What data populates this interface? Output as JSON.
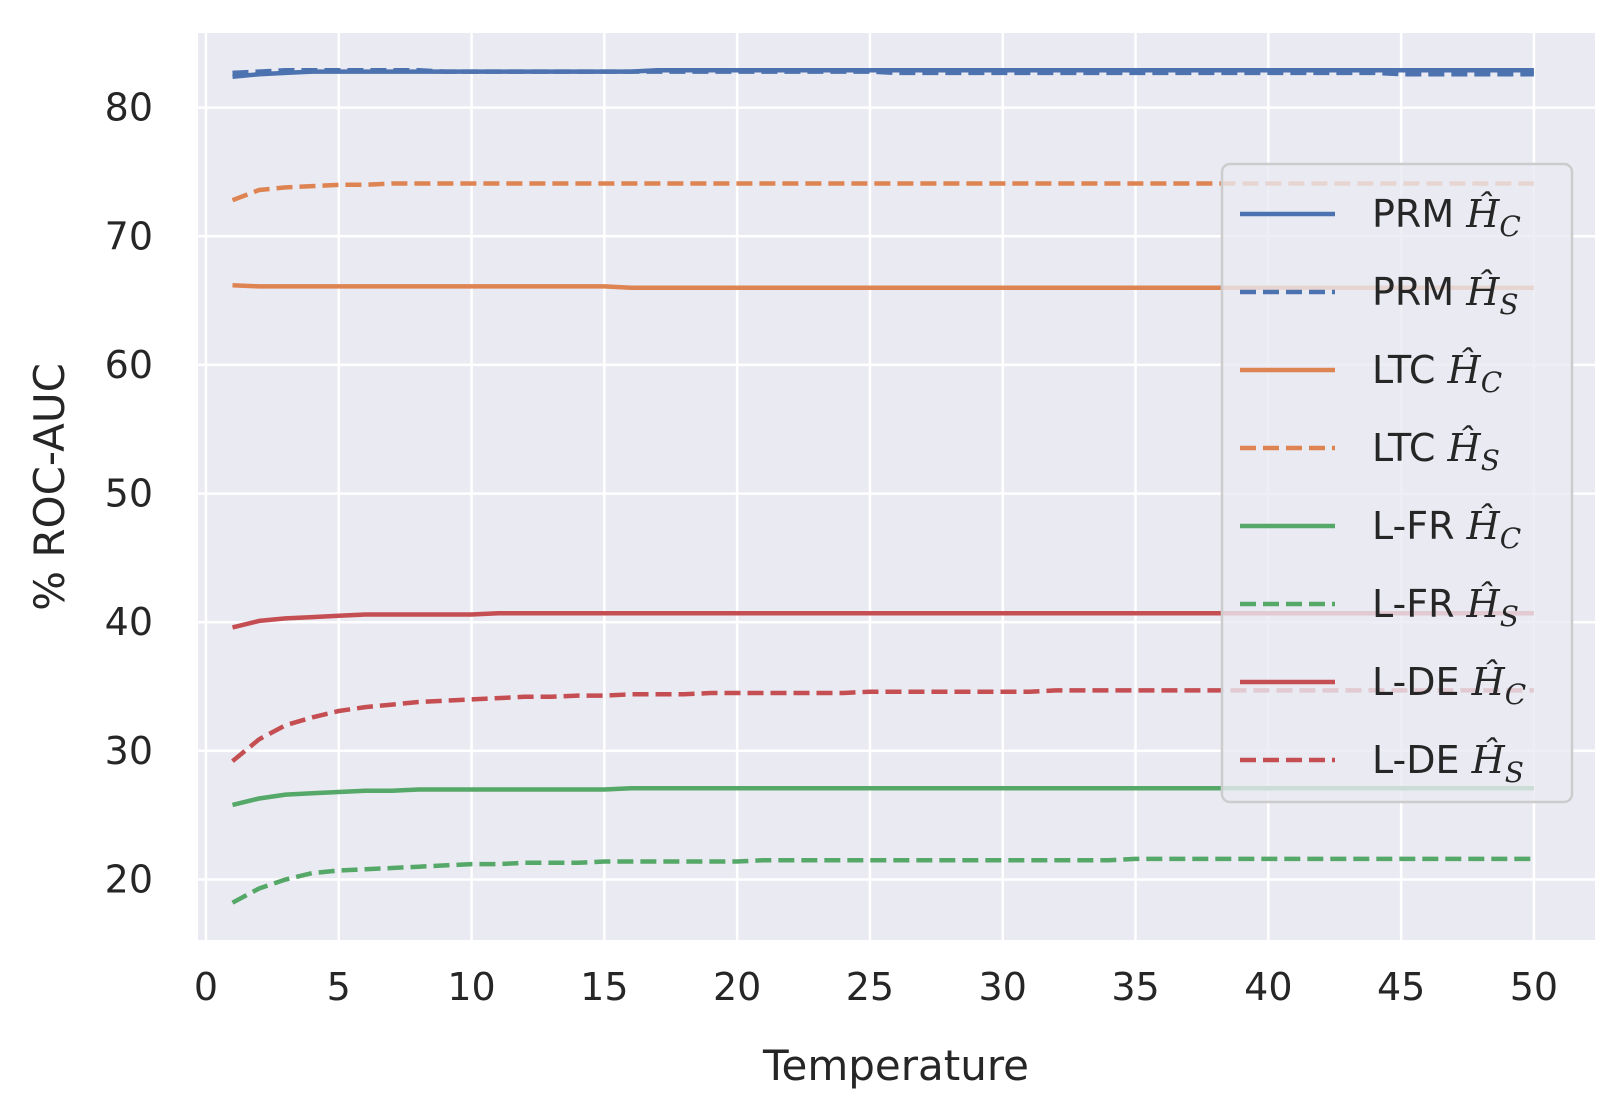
{
  "chart_data": {
    "type": "line",
    "title": "",
    "xlabel": "Temperature",
    "ylabel": "% ROC-AUC",
    "xlim": [
      -0.3,
      52.3
    ],
    "ylim": [
      15.3,
      85.8
    ],
    "xticks": [
      0,
      5,
      10,
      15,
      20,
      25,
      30,
      35,
      40,
      45,
      50
    ],
    "yticks": [
      20,
      30,
      40,
      50,
      60,
      70,
      80
    ],
    "grid": true,
    "legend_position": "right",
    "x": [
      1,
      2,
      3,
      4,
      5,
      6,
      7,
      8,
      9,
      10,
      11,
      12,
      13,
      14,
      15,
      16,
      17,
      18,
      19,
      20,
      21,
      22,
      23,
      24,
      25,
      26,
      27,
      28,
      29,
      30,
      31,
      32,
      33,
      34,
      35,
      36,
      37,
      38,
      39,
      40,
      41,
      42,
      43,
      44,
      45,
      46,
      47,
      48,
      49,
      50
    ],
    "series": [
      {
        "name": "PRM",
        "math": "Ĥ",
        "sub": "C",
        "color": "#4c72b0",
        "dashed": false,
        "values": [
          82.4,
          82.6,
          82.7,
          82.8,
          82.8,
          82.8,
          82.8,
          82.8,
          82.8,
          82.8,
          82.8,
          82.8,
          82.8,
          82.8,
          82.8,
          82.8,
          82.9,
          82.9,
          82.9,
          82.9,
          82.9,
          82.9,
          82.9,
          82.9,
          82.9,
          82.9,
          82.9,
          82.9,
          82.9,
          82.9,
          82.9,
          82.9,
          82.9,
          82.9,
          82.9,
          82.9,
          82.9,
          82.9,
          82.9,
          82.9,
          82.9,
          82.9,
          82.9,
          82.9,
          82.9,
          82.9,
          82.9,
          82.9,
          82.9,
          82.9
        ]
      },
      {
        "name": "PRM",
        "math": "Ĥ",
        "sub": "S",
        "color": "#4c72b0",
        "dashed": true,
        "values": [
          82.7,
          82.8,
          82.9,
          82.9,
          82.9,
          82.9,
          82.9,
          82.9,
          82.8,
          82.8,
          82.8,
          82.8,
          82.8,
          82.8,
          82.8,
          82.8,
          82.8,
          82.8,
          82.8,
          82.8,
          82.8,
          82.8,
          82.8,
          82.8,
          82.8,
          82.7,
          82.7,
          82.7,
          82.7,
          82.7,
          82.7,
          82.7,
          82.7,
          82.7,
          82.7,
          82.7,
          82.7,
          82.7,
          82.7,
          82.7,
          82.7,
          82.7,
          82.7,
          82.7,
          82.6,
          82.6,
          82.6,
          82.6,
          82.6,
          82.6
        ]
      },
      {
        "name": "LTC",
        "math": "Ĥ",
        "sub": "C",
        "color": "#dd8452",
        "dashed": false,
        "values": [
          66.2,
          66.1,
          66.1,
          66.1,
          66.1,
          66.1,
          66.1,
          66.1,
          66.1,
          66.1,
          66.1,
          66.1,
          66.1,
          66.1,
          66.1,
          66.0,
          66.0,
          66.0,
          66.0,
          66.0,
          66.0,
          66.0,
          66.0,
          66.0,
          66.0,
          66.0,
          66.0,
          66.0,
          66.0,
          66.0,
          66.0,
          66.0,
          66.0,
          66.0,
          66.0,
          66.0,
          66.0,
          66.0,
          66.0,
          66.0,
          66.0,
          66.0,
          66.0,
          66.0,
          66.0,
          66.0,
          66.0,
          66.0,
          66.0,
          66.0
        ]
      },
      {
        "name": "LTC",
        "math": "Ĥ",
        "sub": "S",
        "color": "#dd8452",
        "dashed": true,
        "values": [
          72.8,
          73.6,
          73.8,
          73.9,
          74.0,
          74.0,
          74.1,
          74.1,
          74.1,
          74.1,
          74.1,
          74.1,
          74.1,
          74.1,
          74.1,
          74.1,
          74.1,
          74.1,
          74.1,
          74.1,
          74.1,
          74.1,
          74.1,
          74.1,
          74.1,
          74.1,
          74.1,
          74.1,
          74.1,
          74.1,
          74.1,
          74.1,
          74.1,
          74.1,
          74.1,
          74.1,
          74.1,
          74.1,
          74.1,
          74.1,
          74.1,
          74.1,
          74.1,
          74.1,
          74.1,
          74.1,
          74.1,
          74.1,
          74.1,
          74.1
        ]
      },
      {
        "name": "L-FR",
        "math": "Ĥ",
        "sub": "C",
        "color": "#55a868",
        "dashed": false,
        "values": [
          25.8,
          26.3,
          26.6,
          26.7,
          26.8,
          26.9,
          26.9,
          27.0,
          27.0,
          27.0,
          27.0,
          27.0,
          27.0,
          27.0,
          27.0,
          27.1,
          27.1,
          27.1,
          27.1,
          27.1,
          27.1,
          27.1,
          27.1,
          27.1,
          27.1,
          27.1,
          27.1,
          27.1,
          27.1,
          27.1,
          27.1,
          27.1,
          27.1,
          27.1,
          27.1,
          27.1,
          27.1,
          27.1,
          27.1,
          27.1,
          27.1,
          27.1,
          27.1,
          27.1,
          27.1,
          27.1,
          27.1,
          27.1,
          27.1,
          27.1
        ]
      },
      {
        "name": "L-FR",
        "math": "Ĥ",
        "sub": "S",
        "color": "#55a868",
        "dashed": true,
        "values": [
          18.2,
          19.3,
          20.0,
          20.5,
          20.7,
          20.8,
          20.9,
          21.0,
          21.1,
          21.2,
          21.2,
          21.3,
          21.3,
          21.3,
          21.4,
          21.4,
          21.4,
          21.4,
          21.4,
          21.4,
          21.5,
          21.5,
          21.5,
          21.5,
          21.5,
          21.5,
          21.5,
          21.5,
          21.5,
          21.5,
          21.5,
          21.5,
          21.5,
          21.5,
          21.6,
          21.6,
          21.6,
          21.6,
          21.6,
          21.6,
          21.6,
          21.6,
          21.6,
          21.6,
          21.6,
          21.6,
          21.6,
          21.6,
          21.6,
          21.6
        ]
      },
      {
        "name": "L-DE",
        "math": "Ĥ",
        "sub": "C",
        "color": "#c44e52",
        "dashed": false,
        "values": [
          39.6,
          40.1,
          40.3,
          40.4,
          40.5,
          40.6,
          40.6,
          40.6,
          40.6,
          40.6,
          40.7,
          40.7,
          40.7,
          40.7,
          40.7,
          40.7,
          40.7,
          40.7,
          40.7,
          40.7,
          40.7,
          40.7,
          40.7,
          40.7,
          40.7,
          40.7,
          40.7,
          40.7,
          40.7,
          40.7,
          40.7,
          40.7,
          40.7,
          40.7,
          40.7,
          40.7,
          40.7,
          40.7,
          40.7,
          40.7,
          40.7,
          40.7,
          40.7,
          40.7,
          40.7,
          40.7,
          40.7,
          40.7,
          40.7,
          40.7
        ]
      },
      {
        "name": "L-DE",
        "math": "Ĥ",
        "sub": "S",
        "color": "#c44e52",
        "dashed": true,
        "values": [
          29.2,
          30.9,
          32.0,
          32.6,
          33.1,
          33.4,
          33.6,
          33.8,
          33.9,
          34.0,
          34.1,
          34.2,
          34.2,
          34.3,
          34.3,
          34.4,
          34.4,
          34.4,
          34.5,
          34.5,
          34.5,
          34.5,
          34.5,
          34.5,
          34.6,
          34.6,
          34.6,
          34.6,
          34.6,
          34.6,
          34.6,
          34.7,
          34.7,
          34.7,
          34.7,
          34.7,
          34.7,
          34.7,
          34.7,
          34.7,
          34.7,
          34.7,
          34.7,
          34.7,
          34.7,
          34.7,
          34.7,
          34.7,
          34.7,
          34.7
        ]
      }
    ]
  }
}
